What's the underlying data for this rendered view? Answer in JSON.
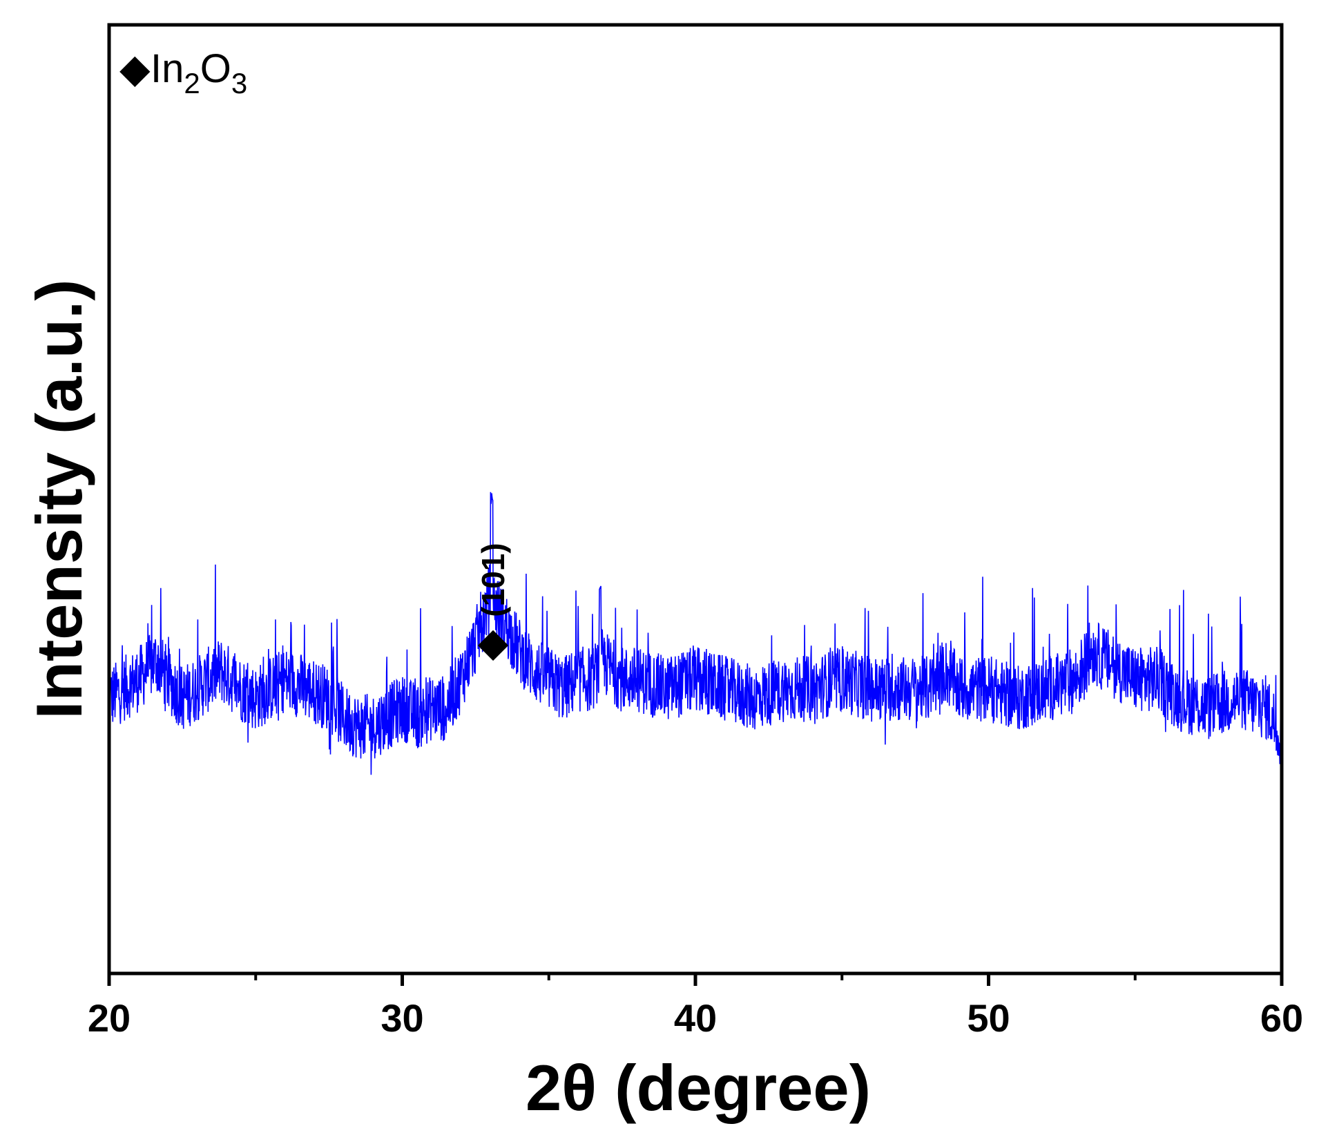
{
  "chart_data": {
    "type": "line",
    "xlabel": "2θ (degree)",
    "ylabel": "Intensity (a.u.)",
    "xlim": [
      20,
      60
    ],
    "ylim": [
      0,
      100
    ],
    "x_ticks": [
      20,
      30,
      40,
      50,
      60
    ],
    "x_minor_ticks": [
      25,
      35,
      45,
      55
    ],
    "y_tick_labels": false,
    "grid": false,
    "legend": {
      "placement": "top-left",
      "marker": "◆",
      "entries": [
        {
          "base": "In",
          "sub1": "2",
          "mid": "O",
          "sub2": "3"
        }
      ]
    },
    "series": [
      {
        "color": "#0000ff",
        "x": [
          20.0,
          21.0,
          21.6,
          22.0,
          22.5,
          23.0,
          23.8,
          24.5,
          25.0,
          26.0,
          26.8,
          27.5,
          28.0,
          28.5,
          29.0,
          29.5,
          30.0,
          30.6,
          31.0,
          31.5,
          32.0,
          32.5,
          33.0,
          33.5,
          34.0,
          34.5,
          35.0,
          35.5,
          36.0,
          36.5,
          36.8,
          37.5,
          38.0,
          39.0,
          40.0,
          41.0,
          42.0,
          43.0,
          44.0,
          45.0,
          46.0,
          47.0,
          48.0,
          48.5,
          49.0,
          50.0,
          51.0,
          52.0,
          53.0,
          53.5,
          54.0,
          55.0,
          55.8,
          56.5,
          57.5,
          58.5,
          59.5,
          60.0
        ],
        "y": [
          29,
          31,
          33,
          31,
          29,
          30,
          32,
          30,
          29,
          31,
          30,
          29,
          27,
          26,
          26,
          27,
          28,
          27,
          28,
          28,
          31,
          35,
          40,
          37,
          34,
          32,
          31,
          30,
          31,
          31,
          33,
          31,
          31,
          30,
          31,
          30,
          29,
          30,
          30,
          31,
          30,
          30,
          30,
          32,
          30,
          30,
          29,
          30,
          31,
          34,
          33,
          31,
          31,
          29,
          28,
          29,
          28,
          25
        ]
      }
    ],
    "annotations": [
      {
        "x": 33.1,
        "marker": "◆",
        "label": "(101)"
      }
    ]
  }
}
